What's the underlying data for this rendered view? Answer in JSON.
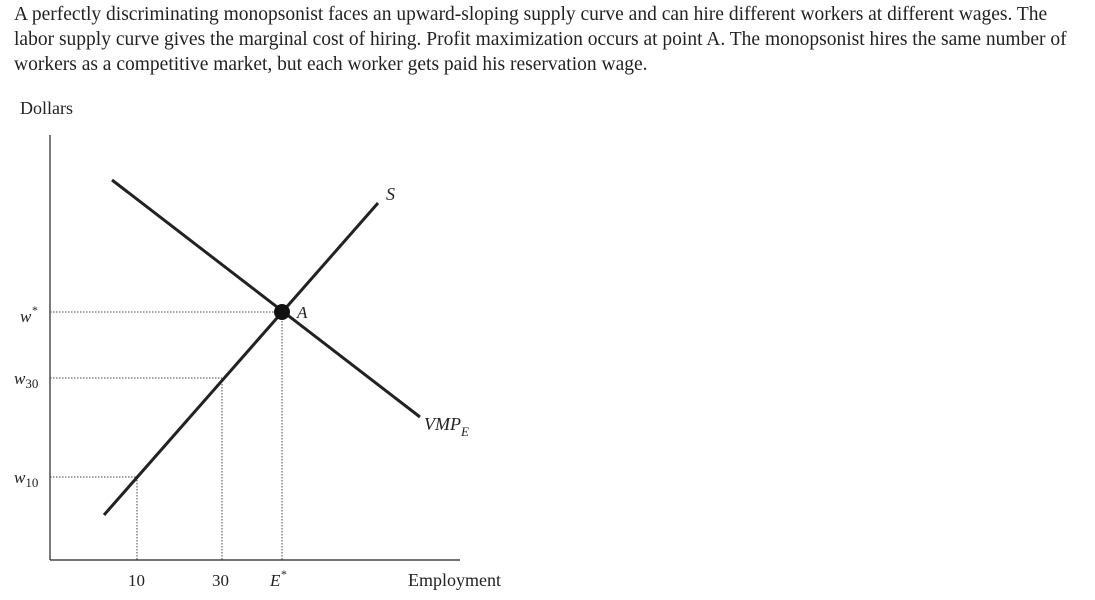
{
  "caption": "A perfectly discriminating monopsonist faces an upward-sloping supply curve and can hire different workers at different wages. The labor supply curve gives the marginal cost of hiring. Profit maximization occurs at point A. The monopsonist hires the same number of workers as a competitive market, but each worker gets paid his reservation wage.",
  "figure": {
    "y_axis_label": "Dollars",
    "x_axis_label": "Employment",
    "wage_labels": {
      "w_star": "w",
      "w_star_sup": "*",
      "w30": "w",
      "w30_sub": "30",
      "w10": "w",
      "w10_sub": "10"
    },
    "employment_labels": {
      "e10": "10",
      "e30": "30",
      "e_star": "E",
      "e_star_sup": "*"
    },
    "supply_label": "S",
    "demand_label": "VMP",
    "demand_label_sub": "E",
    "point_label": "A"
  }
}
